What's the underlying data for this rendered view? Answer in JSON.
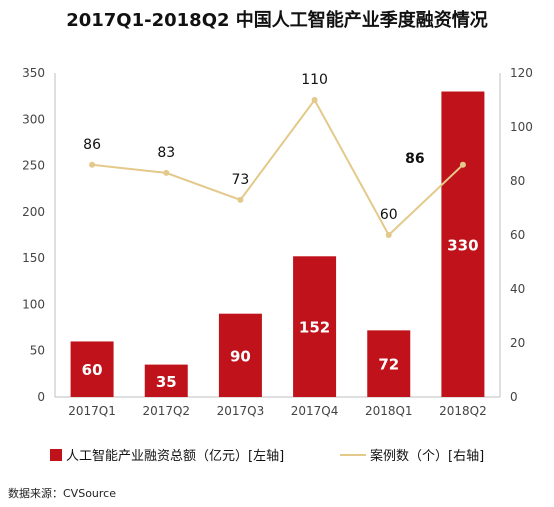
{
  "colors": {
    "bar": "#c0121a",
    "line": "#e3c98a",
    "axis": "#bfbfbf",
    "text": "#111111"
  },
  "title": "2017Q1-2018Q2 中国人工智能产业季度融资情况",
  "source": "数据来源：CVSource",
  "chart_data": {
    "type": "bar",
    "categories": [
      "2017Q1",
      "2017Q2",
      "2017Q3",
      "2017Q4",
      "2018Q1",
      "2018Q2"
    ],
    "series": [
      {
        "name": "人工智能产业融资总额（亿元）[左轴]",
        "type": "bar",
        "axis": "left",
        "values": [
          60,
          35,
          90,
          152,
          72,
          330
        ]
      },
      {
        "name": "案例数（个）[右轴]",
        "type": "line",
        "axis": "right",
        "values": [
          86,
          83,
          73,
          110,
          60,
          86
        ]
      }
    ],
    "ylim_left": [
      0,
      350
    ],
    "yticks_left": [
      0,
      50,
      100,
      150,
      200,
      250,
      300,
      350
    ],
    "ylim_right": [
      0,
      120
    ],
    "yticks_right": [
      0,
      20,
      40,
      60,
      80,
      100,
      120
    ],
    "legend_position": "bottom",
    "grid": false
  }
}
